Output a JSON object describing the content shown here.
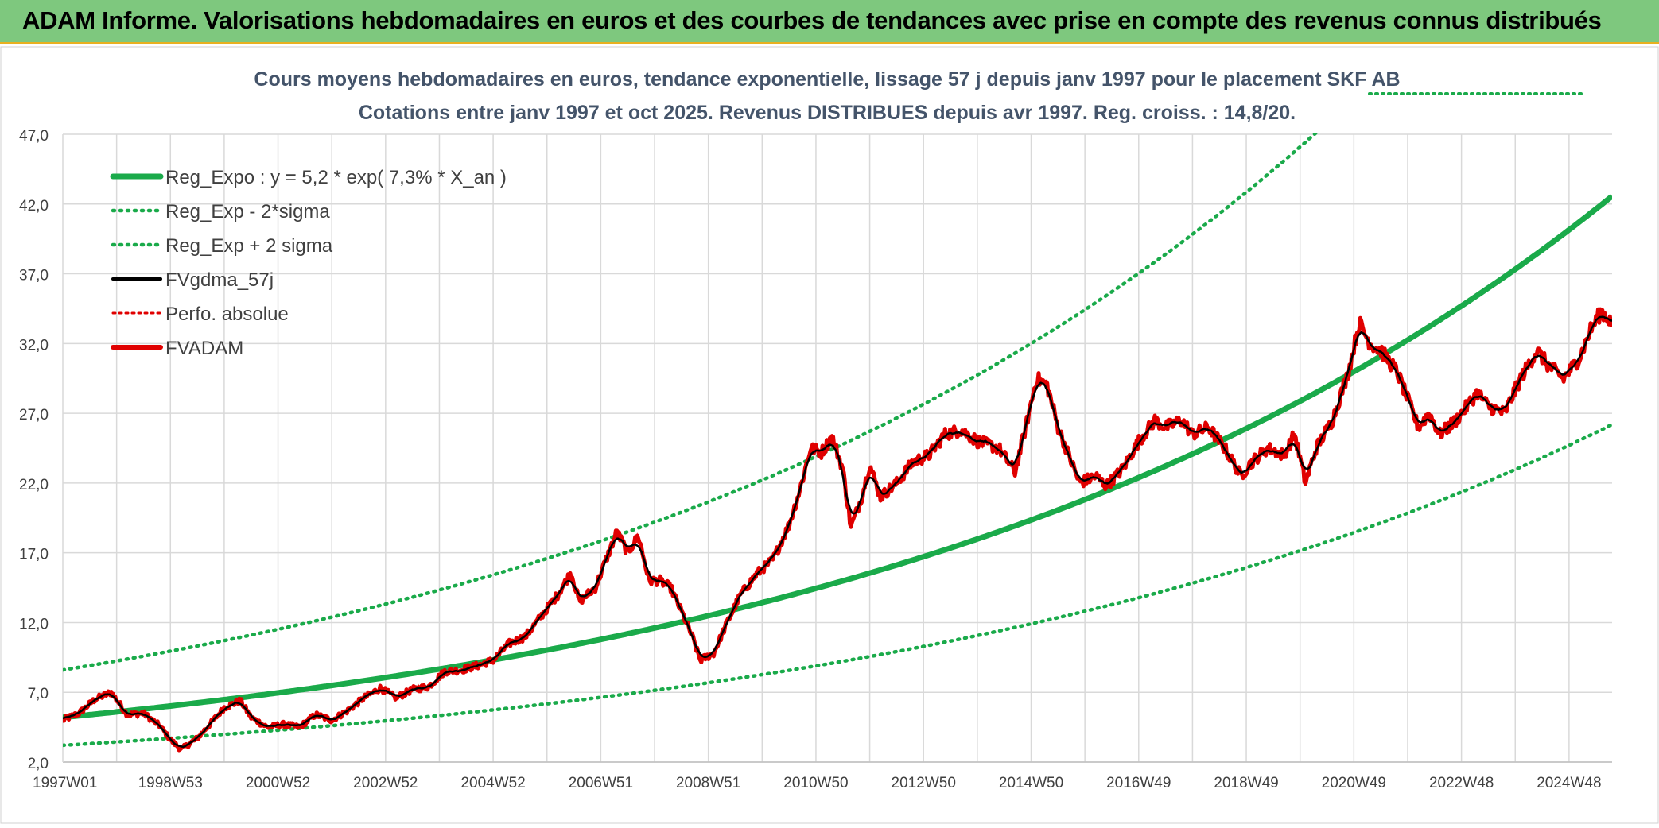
{
  "banner": {
    "title": "ADAM Informe. Valorisations hebdomadaires en euros et des courbes de tendances avec prise en compte des revenus connus distribués"
  },
  "chart_data": {
    "type": "line",
    "title": "Cours moyens hebdomadaires en euros, tendance exponentielle, lissage 57 j depuis janv 1997 pour le placement SKF AB",
    "subtitle": "Cotations entre janv 1997 et oct 2025. Revenus DISTRIBUES depuis avr 1997. Reg. croiss. : 14,8/20.",
    "xlabel": "",
    "ylabel": "",
    "ylim": [
      2.0,
      47.0
    ],
    "xlim": [
      1997.0,
      2025.8
    ],
    "y_ticks": [
      "2,0",
      "7,0",
      "12,0",
      "17,0",
      "22,0",
      "27,0",
      "32,0",
      "37,0",
      "42,0",
      "47,0"
    ],
    "y_tick_values": [
      2,
      7,
      12,
      17,
      22,
      27,
      32,
      37,
      42,
      47
    ],
    "x_ticks": [
      "1997W01",
      "1998W53",
      "2000W52",
      "2002W52",
      "2004W52",
      "2006W51",
      "2008W51",
      "2010W50",
      "2012W50",
      "2014W50",
      "2016W49",
      "2018W49",
      "2020W49",
      "2022W48",
      "2024W48"
    ],
    "x_tick_years": [
      1997.0,
      1999.0,
      2001.0,
      2003.0,
      2005.0,
      2007.0,
      2009.0,
      2011.0,
      2013.0,
      2015.0,
      2017.0,
      2019.0,
      2021.0,
      2023.0,
      2025.0
    ],
    "legend_position": "top-left",
    "series": [
      {
        "name": "Reg_Expo : y = 5,2 * exp( 7,3% *  X_an )",
        "style": "solid-thick",
        "color": "#1aaa4a",
        "model": {
          "a": 5.2,
          "b": 0.073,
          "x0": 1997.0
        }
      },
      {
        "name": "Reg_Exp - 2*sigma",
        "style": "dotted",
        "color": "#1aaa4a",
        "model": {
          "a": 3.2,
          "b": 0.073,
          "x0": 1997.0
        }
      },
      {
        "name": "Reg_Exp + 2 sigma",
        "style": "dotted",
        "color": "#1aaa4a",
        "model": {
          "a": 8.6,
          "b": 0.073,
          "x0": 1997.0
        }
      },
      {
        "name": "FVgdma_57j",
        "style": "solid",
        "color": "#000000"
      },
      {
        "name": "Perfo. absolue",
        "style": "dotted",
        "color": "#e00000"
      },
      {
        "name": "FVADAM",
        "style": "solid-thick",
        "color": "#e00000"
      }
    ],
    "fvadam_points": [
      [
        1997.0,
        5.0
      ],
      [
        1997.3,
        5.5
      ],
      [
        1997.6,
        6.5
      ],
      [
        1997.9,
        7.0
      ],
      [
        1998.2,
        5.4
      ],
      [
        1998.5,
        5.5
      ],
      [
        1998.8,
        4.6
      ],
      [
        1999.0,
        3.6
      ],
      [
        1999.2,
        2.9
      ],
      [
        1999.5,
        3.7
      ],
      [
        1999.8,
        5.0
      ],
      [
        2000.0,
        5.9
      ],
      [
        2000.3,
        6.4
      ],
      [
        2000.5,
        5.2
      ],
      [
        2000.8,
        4.5
      ],
      [
        2001.1,
        4.7
      ],
      [
        2001.4,
        4.5
      ],
      [
        2001.7,
        5.4
      ],
      [
        2002.0,
        5.0
      ],
      [
        2002.3,
        5.7
      ],
      [
        2002.6,
        6.6
      ],
      [
        2002.9,
        7.3
      ],
      [
        2003.2,
        6.6
      ],
      [
        2003.5,
        7.2
      ],
      [
        2003.8,
        7.4
      ],
      [
        2004.1,
        8.5
      ],
      [
        2004.4,
        8.6
      ],
      [
        2004.7,
        8.9
      ],
      [
        2005.0,
        9.3
      ],
      [
        2005.3,
        10.5
      ],
      [
        2005.6,
        11.0
      ],
      [
        2005.9,
        12.5
      ],
      [
        2006.2,
        14.0
      ],
      [
        2006.45,
        15.6
      ],
      [
        2006.6,
        13.5
      ],
      [
        2006.9,
        14.5
      ],
      [
        2007.1,
        16.5
      ],
      [
        2007.3,
        18.5
      ],
      [
        2007.5,
        17.0
      ],
      [
        2007.7,
        18.2
      ],
      [
        2007.9,
        15.0
      ],
      [
        2008.1,
        15.0
      ],
      [
        2008.3,
        14.5
      ],
      [
        2008.5,
        12.8
      ],
      [
        2008.7,
        11.0
      ],
      [
        2008.85,
        9.3
      ],
      [
        2009.1,
        9.8
      ],
      [
        2009.35,
        12.0
      ],
      [
        2009.6,
        14.0
      ],
      [
        2009.9,
        15.5
      ],
      [
        2010.2,
        16.5
      ],
      [
        2010.5,
        19.0
      ],
      [
        2010.7,
        21.5
      ],
      [
        2010.9,
        24.5
      ],
      [
        2011.1,
        24.2
      ],
      [
        2011.3,
        25.3
      ],
      [
        2011.5,
        23.0
      ],
      [
        2011.65,
        18.8
      ],
      [
        2011.85,
        21.0
      ],
      [
        2012.0,
        23.3
      ],
      [
        2012.2,
        21.0
      ],
      [
        2012.5,
        22.0
      ],
      [
        2012.8,
        23.5
      ],
      [
        2013.1,
        24.0
      ],
      [
        2013.4,
        25.5
      ],
      [
        2013.7,
        25.8
      ],
      [
        2014.0,
        25.0
      ],
      [
        2014.4,
        24.5
      ],
      [
        2014.7,
        22.8
      ],
      [
        2014.9,
        26.0
      ],
      [
        2015.1,
        29.5
      ],
      [
        2015.3,
        29.0
      ],
      [
        2015.5,
        26.0
      ],
      [
        2015.7,
        24.0
      ],
      [
        2015.9,
        22.0
      ],
      [
        2016.2,
        22.5
      ],
      [
        2016.4,
        21.8
      ],
      [
        2016.7,
        23.0
      ],
      [
        2017.0,
        25.0
      ],
      [
        2017.3,
        26.5
      ],
      [
        2017.5,
        26.0
      ],
      [
        2017.8,
        26.5
      ],
      [
        2018.0,
        25.5
      ],
      [
        2018.3,
        26.0
      ],
      [
        2018.6,
        24.5
      ],
      [
        2018.9,
        22.5
      ],
      [
        2019.1,
        23.5
      ],
      [
        2019.4,
        24.5
      ],
      [
        2019.7,
        24.0
      ],
      [
        2019.9,
        25.5
      ],
      [
        2020.1,
        22.0
      ],
      [
        2020.3,
        24.5
      ],
      [
        2020.6,
        26.5
      ],
      [
        2020.9,
        30.0
      ],
      [
        2021.1,
        33.5
      ],
      [
        2021.3,
        32.0
      ],
      [
        2021.5,
        31.5
      ],
      [
        2021.8,
        30.0
      ],
      [
        2022.0,
        28.0
      ],
      [
        2022.2,
        26.0
      ],
      [
        2022.4,
        27.0
      ],
      [
        2022.6,
        25.5
      ],
      [
        2022.9,
        26.5
      ],
      [
        2023.1,
        27.5
      ],
      [
        2023.3,
        28.5
      ],
      [
        2023.5,
        27.5
      ],
      [
        2023.8,
        27.0
      ],
      [
        2024.1,
        29.5
      ],
      [
        2024.4,
        31.5
      ],
      [
        2024.6,
        30.5
      ],
      [
        2024.9,
        29.5
      ],
      [
        2025.2,
        31.0
      ],
      [
        2025.4,
        33.0
      ],
      [
        2025.6,
        34.3
      ],
      [
        2025.8,
        33.5
      ]
    ]
  }
}
